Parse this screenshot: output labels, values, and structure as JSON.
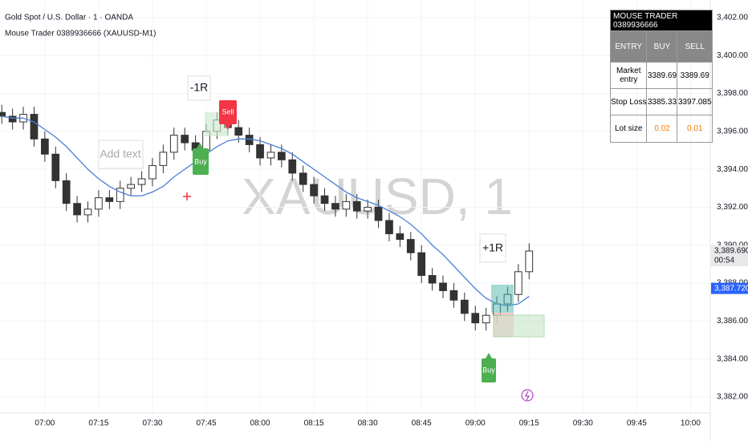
{
  "chart_data": {
    "type": "candlestick",
    "title": "Gold Spot / U.S. Dollar · 1 · OANDA",
    "subtitle": "Mouse Trader 0389936666 (XAUUSD-M1)",
    "watermark": "XAUUSD, 1",
    "up_color": "#ffffff",
    "down_color": "#333333",
    "candles": {
      "x": [
        408,
        411,
        414,
        417,
        420,
        423,
        426,
        429,
        432,
        435,
        438,
        441,
        444,
        447,
        450,
        453,
        456,
        459,
        462,
        465,
        468,
        471,
        474,
        477,
        480,
        483,
        486,
        489,
        492,
        495,
        498,
        501,
        504,
        507,
        510,
        513,
        516,
        519,
        522,
        525,
        528,
        531,
        534,
        537,
        540,
        543,
        546,
        549,
        552,
        555
      ],
      "open": [
        3397.0,
        3396.8,
        3396.5,
        3396.9,
        3395.6,
        3394.8,
        3393.4,
        3392.2,
        3391.6,
        3391.9,
        3392.5,
        3392.3,
        3393.0,
        3393.2,
        3393.5,
        3394.2,
        3394.9,
        3395.8,
        3395.4,
        3395.0,
        3396.0,
        3396.6,
        3396.2,
        3395.8,
        3395.3,
        3394.6,
        3394.9,
        3394.5,
        3393.8,
        3393.2,
        3392.6,
        3392.2,
        3391.9,
        3392.3,
        3391.8,
        3392.0,
        3391.3,
        3390.6,
        3390.3,
        3389.6,
        3388.4,
        3388.0,
        3387.6,
        3387.1,
        3386.4,
        3385.9,
        3386.3,
        3386.9,
        3387.4,
        3388.6
      ],
      "high": [
        3397.4,
        3397.2,
        3397.3,
        3397.3,
        3396.0,
        3395.2,
        3393.8,
        3392.6,
        3392.3,
        3392.9,
        3392.9,
        3393.4,
        3393.6,
        3393.9,
        3394.6,
        3395.3,
        3396.2,
        3396.2,
        3395.8,
        3396.4,
        3397.0,
        3397.0,
        3396.6,
        3396.2,
        3395.7,
        3395.3,
        3395.3,
        3394.9,
        3394.2,
        3393.6,
        3393.0,
        3392.6,
        3392.7,
        3392.7,
        3392.4,
        3392.4,
        3391.7,
        3391.0,
        3390.7,
        3390.0,
        3388.8,
        3388.4,
        3388.0,
        3387.5,
        3386.8,
        3386.7,
        3387.3,
        3387.8,
        3389.0,
        3390.1
      ],
      "low": [
        3396.4,
        3396.1,
        3396.1,
        3395.2,
        3394.4,
        3393.0,
        3391.8,
        3391.2,
        3391.2,
        3391.5,
        3391.9,
        3391.9,
        3392.6,
        3392.8,
        3393.1,
        3393.8,
        3394.5,
        3395.0,
        3394.6,
        3394.6,
        3395.6,
        3395.8,
        3395.4,
        3394.9,
        3394.2,
        3394.2,
        3394.1,
        3393.4,
        3392.8,
        3392.2,
        3391.8,
        3391.5,
        3391.5,
        3391.4,
        3391.4,
        3390.9,
        3390.2,
        3389.9,
        3389.2,
        3388.0,
        3387.6,
        3387.2,
        3386.7,
        3386.0,
        3385.5,
        3385.5,
        3385.9,
        3386.5,
        3387.0,
        3388.2
      ],
      "close": [
        3396.8,
        3396.5,
        3396.9,
        3395.6,
        3394.8,
        3393.4,
        3392.2,
        3391.6,
        3391.9,
        3392.5,
        3392.3,
        3393.0,
        3393.2,
        3393.5,
        3394.2,
        3394.9,
        3395.8,
        3395.4,
        3395.0,
        3396.0,
        3396.6,
        3396.2,
        3395.8,
        3395.3,
        3394.6,
        3394.9,
        3394.5,
        3393.8,
        3393.2,
        3392.6,
        3392.2,
        3391.9,
        3392.3,
        3391.8,
        3392.0,
        3391.3,
        3390.6,
        3390.3,
        3389.6,
        3388.4,
        3388.0,
        3387.6,
        3387.1,
        3386.4,
        3385.9,
        3386.3,
        3386.9,
        3387.4,
        3388.6,
        3389.69
      ]
    },
    "ma": {
      "color": "#4a7fd6",
      "values": [
        3396.8,
        3396.7,
        3396.7,
        3396.5,
        3396.1,
        3395.7,
        3395.2,
        3394.6,
        3394.0,
        3393.5,
        3393.1,
        3392.8,
        3392.6,
        3392.6,
        3392.8,
        3393.1,
        3393.6,
        3394.0,
        3394.4,
        3394.8,
        3395.2,
        3395.5,
        3395.6,
        3395.6,
        3395.5,
        3395.3,
        3395.1,
        3394.8,
        3394.4,
        3394.0,
        3393.6,
        3393.2,
        3392.8,
        3392.5,
        3392.3,
        3392.1,
        3391.8,
        3391.5,
        3391.1,
        3390.6,
        3390.0,
        3389.5,
        3388.9,
        3388.3,
        3387.7,
        3387.2,
        3386.9,
        3386.8,
        3386.9,
        3387.3
      ]
    },
    "xlim": [
      407.5,
      605.5
    ],
    "ylim": [
      3381.15,
      3402.93
    ],
    "xticks": [
      {
        "value": 420,
        "label": "07:00"
      },
      {
        "value": 435,
        "label": "07:15"
      },
      {
        "value": 450,
        "label": "07:30"
      },
      {
        "value": 465,
        "label": "07:45"
      },
      {
        "value": 480,
        "label": "08:00"
      },
      {
        "value": 495,
        "label": "08:15"
      },
      {
        "value": 510,
        "label": "08:30"
      },
      {
        "value": 525,
        "label": "08:45"
      },
      {
        "value": 540,
        "label": "09:00"
      },
      {
        "value": 555,
        "label": "09:15"
      },
      {
        "value": 570,
        "label": "09:30"
      },
      {
        "value": 585,
        "label": "09:45"
      },
      {
        "value": 600,
        "label": "10:00"
      }
    ],
    "yticks": [
      {
        "value": 3382,
        "label": "3,382.000"
      },
      {
        "value": 3384,
        "label": "3,384.000"
      },
      {
        "value": 3386,
        "label": "3,386.000"
      },
      {
        "value": 3388,
        "label": "3,388.000"
      },
      {
        "value": 3390,
        "label": "3,390.000"
      },
      {
        "value": 3392,
        "label": "3,392.000"
      },
      {
        "value": 3394,
        "label": "3,394.000"
      },
      {
        "value": 3396,
        "label": "3,396.000"
      },
      {
        "value": 3398,
        "label": "3,398.000"
      },
      {
        "value": 3400,
        "label": "3,400.000"
      },
      {
        "value": 3402,
        "label": "3,402.000"
      }
    ],
    "grid": true,
    "price_labels": [
      {
        "value": 3389.69,
        "label": "3,389.690",
        "countdown": "00:54"
      },
      {
        "value": 3387.72,
        "label": "3,387.720"
      }
    ],
    "annotations": [
      "-1R",
      "Sell",
      "Buy",
      "Add text",
      "+1R",
      "Buy"
    ]
  },
  "table": {
    "title": "MOUSE TRADER  0389936666",
    "header": [
      "ENTRY",
      "BUY",
      "SELL"
    ],
    "rows": [
      [
        "Market entry",
        3389.69,
        3389.69
      ],
      [
        "Stop Loss",
        3385.33,
        3397.085
      ],
      [
        "Lot size",
        0.02,
        0.01
      ]
    ]
  }
}
